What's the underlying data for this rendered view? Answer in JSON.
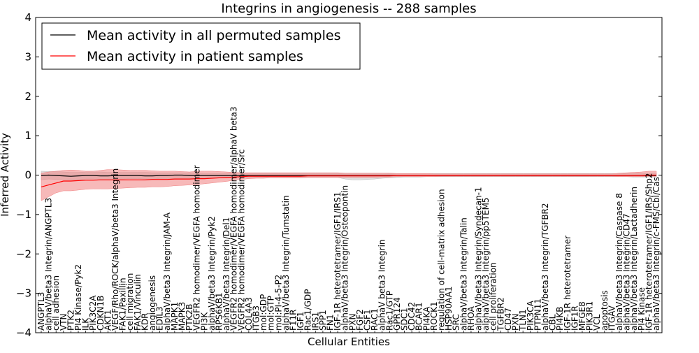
{
  "chart_data": {
    "type": "line",
    "title": "Integrins in angiogenesis -- 288 samples",
    "xlabel": "Cellular Entities",
    "ylabel": "Inferred Activity",
    "ylim": [
      -4,
      4
    ],
    "yticks": [
      -4,
      -3,
      -2,
      -1,
      0,
      1,
      2,
      3,
      4
    ],
    "grid": false,
    "legend_position": "top-left",
    "categories": [
      "ANGPTL3",
      "alphaV/beta3 Integrin/ANGPTL3",
      "cell adhesion",
      "VTN",
      "PTK2",
      "PI4 Kinase/Pyk2",
      "ILK",
      "PIK3C2A",
      "CDKN1B",
      "AKT1",
      "VEGF/Rho/ROCK/alphaV/beta3 Integrin",
      "FAK1/Paxillin",
      "cell migration",
      "FAK1/Vinculin",
      "KDR",
      "angiogenesis",
      "EDIL3",
      "alphaV/beta3 Integrin/JAM-A",
      "MAPK1",
      "MAPK3",
      "PTK2B",
      "VEGFR2 homodimer/VEGFA homodimer",
      "PI3K",
      "alphaV/beta3 Integrin/Pyk2",
      "RPS6KB1",
      "alphaV/beta3 Integrin/Del1",
      "VEGFR2 homodimer/VEGFA homodimer/alphaV beta3",
      "VEGFR2 homodimer/VEGFA homodimer/Src",
      "COL4A3",
      "ITGB3",
      "mol:GDP",
      "mol:GTP",
      "mol:PI-4-5-P2",
      "alphaV/beta3 Integrin/Tumstatin",
      "F11R",
      "IGF1",
      "Rac1/GDP",
      "IRS1",
      "SPP1",
      "FN1",
      "IGF-1R heterotetramer/IGF1/IRS1",
      "alphaV/beta3 Integrin/Osteopontin",
      "PXN",
      "FGF2",
      "CSF1",
      "RAC1",
      "alphaV beta3 Integrin",
      "Rac1/GTP",
      "GPR124",
      "SDC1",
      "CDC42",
      "BCAR1",
      "PI4KA",
      "ROCK1",
      "regulation of cell-matrix adhesion",
      "HSP90AA1",
      "SRC",
      "alphaV/beta3 Integrin/Talin",
      "RHOA",
      "alphaV/beta3 Integrin/Syndecan-1",
      "alphaV/beta3 Integrin/pp5TEM5",
      "cell proliferation",
      "TGFBR2",
      "CD47",
      "PXN",
      "TLN1",
      "PIK3CA",
      "PTPN11",
      "alphaV/beta3 Integrin/TGFBR2",
      "CBL",
      "PI4KB",
      "IGF-1R heterotetramer",
      "IGF1R",
      "MFGE8",
      "PIK3R1",
      "VCL",
      "apoptosis",
      "ITGAV",
      "alphaV/beta3 Integrin/Caspase 8",
      "alphaV/beta3 Integrin/CD47",
      "alphaV/beta3 Integrin/Lactadherin",
      "PI4 Kinase",
      "IGF-1R heterotetramer/IGF1/IRS/Shp2",
      "alphaV/beta3 Integrin/c-FMS/Cbl/Cas"
    ],
    "series": [
      {
        "name": "Mean activity in all permuted samples",
        "color": "#000000",
        "band_color": "#bbbbbb",
        "values": [
          -0.01,
          0.0,
          -0.01,
          -0.02,
          -0.03,
          -0.02,
          -0.01,
          -0.01,
          -0.02,
          -0.02,
          -0.01,
          -0.01,
          -0.01,
          -0.01,
          -0.02,
          -0.02,
          -0.01,
          -0.01,
          0.0,
          0.0,
          -0.01,
          -0.01,
          -0.01,
          -0.01,
          -0.01,
          -0.01,
          -0.01,
          -0.01,
          -0.01,
          -0.01,
          -0.01,
          -0.01,
          -0.01,
          -0.01,
          -0.01,
          -0.01,
          -0.01,
          -0.01,
          -0.01,
          -0.01,
          -0.01,
          -0.01,
          -0.01,
          -0.01,
          -0.01,
          -0.01,
          -0.01,
          -0.01,
          -0.01,
          -0.01,
          -0.01,
          -0.01,
          -0.01,
          -0.01,
          -0.01,
          -0.01,
          -0.01,
          -0.01,
          -0.01,
          -0.01,
          -0.01,
          -0.01,
          -0.01,
          -0.01,
          -0.01,
          -0.01,
          -0.01,
          -0.01,
          -0.01,
          -0.01,
          -0.01,
          -0.01,
          -0.01,
          -0.01,
          -0.01,
          -0.01,
          -0.01,
          -0.01,
          -0.01,
          -0.01,
          -0.01,
          -0.01,
          -0.01,
          -0.01
        ],
        "band_lower": [
          -0.12,
          -0.1,
          -0.11,
          -0.12,
          -0.13,
          -0.12,
          -0.1,
          -0.1,
          -0.11,
          -0.11,
          -0.1,
          -0.1,
          -0.09,
          -0.09,
          -0.1,
          -0.1,
          -0.09,
          -0.09,
          -0.08,
          -0.08,
          -0.08,
          -0.08,
          -0.07,
          -0.07,
          -0.07,
          -0.07,
          -0.06,
          -0.06,
          -0.06,
          -0.06,
          -0.06,
          -0.06,
          -0.06,
          -0.06,
          -0.06,
          -0.06,
          -0.06,
          -0.06,
          -0.06,
          -0.06,
          -0.06,
          -0.1,
          -0.12,
          -0.12,
          -0.11,
          -0.1,
          -0.08,
          -0.07,
          -0.06,
          -0.05,
          -0.05,
          -0.05,
          -0.04,
          -0.04,
          -0.04,
          -0.04,
          -0.04,
          -0.04,
          -0.04,
          -0.04,
          -0.04,
          -0.04,
          -0.04,
          -0.04,
          -0.04,
          -0.04,
          -0.04,
          -0.04,
          -0.04,
          -0.04,
          -0.04,
          -0.04,
          -0.04,
          -0.04,
          -0.04,
          -0.04,
          -0.04,
          -0.04,
          -0.04,
          -0.04,
          -0.05,
          -0.05,
          -0.05,
          -0.05
        ],
        "band_upper": [
          0.1,
          0.09,
          0.09,
          0.08,
          0.07,
          0.07,
          0.08,
          0.08,
          0.08,
          0.07,
          0.07,
          0.07,
          0.07,
          0.07,
          0.07,
          0.06,
          0.06,
          0.06,
          0.06,
          0.06,
          0.06,
          0.06,
          0.05,
          0.05,
          0.05,
          0.05,
          0.05,
          0.05,
          0.05,
          0.05,
          0.05,
          0.05,
          0.05,
          0.05,
          0.05,
          0.05,
          0.05,
          0.05,
          0.05,
          0.05,
          0.05,
          0.05,
          0.05,
          0.05,
          0.05,
          0.05,
          0.05,
          0.04,
          0.04,
          0.04,
          0.04,
          0.04,
          0.04,
          0.04,
          0.04,
          0.04,
          0.04,
          0.04,
          0.04,
          0.04,
          0.04,
          0.04,
          0.04,
          0.04,
          0.04,
          0.04,
          0.04,
          0.04,
          0.04,
          0.04,
          0.04,
          0.04,
          0.04,
          0.04,
          0.04,
          0.04,
          0.04,
          0.04,
          0.04,
          0.04,
          0.05,
          0.05,
          0.05,
          0.05
        ]
      },
      {
        "name": "Mean activity in patient samples",
        "color": "#ff0000",
        "band_color": "#f08080",
        "values": [
          -0.3,
          -0.25,
          -0.2,
          -0.15,
          -0.15,
          -0.14,
          -0.13,
          -0.13,
          -0.12,
          -0.12,
          -0.12,
          -0.12,
          -0.12,
          -0.12,
          -0.12,
          -0.11,
          -0.11,
          -0.11,
          -0.1,
          -0.1,
          -0.1,
          -0.09,
          -0.09,
          -0.08,
          -0.07,
          -0.06,
          -0.05,
          -0.04,
          -0.03,
          -0.03,
          -0.03,
          -0.03,
          -0.03,
          -0.03,
          -0.03,
          -0.03,
          -0.02,
          -0.02,
          -0.02,
          -0.02,
          -0.02,
          -0.02,
          -0.02,
          -0.02,
          -0.02,
          -0.02,
          -0.02,
          -0.02,
          -0.01,
          -0.01,
          -0.01,
          -0.01,
          -0.01,
          -0.01,
          -0.01,
          -0.01,
          -0.01,
          -0.01,
          -0.01,
          -0.01,
          -0.01,
          -0.01,
          -0.01,
          -0.01,
          -0.01,
          -0.01,
          -0.01,
          -0.01,
          -0.01,
          -0.01,
          -0.01,
          -0.01,
          -0.01,
          -0.01,
          -0.01,
          -0.01,
          -0.01,
          -0.01,
          -0.01,
          -0.01,
          -0.01,
          -0.01,
          0.0,
          0.0
        ],
        "band_lower": [
          -0.65,
          -0.55,
          -0.45,
          -0.4,
          -0.4,
          -0.38,
          -0.36,
          -0.35,
          -0.35,
          -0.35,
          -0.34,
          -0.33,
          -0.32,
          -0.31,
          -0.31,
          -0.3,
          -0.3,
          -0.29,
          -0.27,
          -0.26,
          -0.25,
          -0.24,
          -0.22,
          -0.2,
          -0.18,
          -0.16,
          -0.13,
          -0.11,
          -0.09,
          -0.08,
          -0.08,
          -0.07,
          -0.07,
          -0.07,
          -0.07,
          -0.07,
          -0.06,
          -0.06,
          -0.06,
          -0.06,
          -0.06,
          -0.06,
          -0.06,
          -0.06,
          -0.06,
          -0.06,
          -0.05,
          -0.05,
          -0.04,
          -0.04,
          -0.04,
          -0.04,
          -0.04,
          -0.04,
          -0.03,
          -0.03,
          -0.03,
          -0.03,
          -0.03,
          -0.03,
          -0.03,
          -0.03,
          -0.03,
          -0.03,
          -0.03,
          -0.03,
          -0.03,
          -0.03,
          -0.03,
          -0.03,
          -0.03,
          -0.03,
          -0.03,
          -0.03,
          -0.03,
          -0.03,
          -0.03,
          -0.03,
          -0.04,
          -0.04,
          -0.04,
          -0.04,
          -0.03,
          -0.03
        ],
        "band_upper": [
          0.05,
          0.08,
          0.1,
          0.12,
          0.13,
          0.12,
          0.1,
          0.1,
          0.12,
          0.14,
          0.14,
          0.13,
          0.12,
          0.12,
          0.12,
          0.11,
          0.1,
          0.1,
          0.1,
          0.09,
          0.08,
          0.1,
          0.1,
          0.1,
          0.09,
          0.08,
          0.07,
          0.06,
          0.06,
          0.06,
          0.06,
          0.06,
          0.06,
          0.06,
          0.06,
          0.06,
          0.06,
          0.06,
          0.06,
          0.06,
          0.06,
          0.05,
          0.05,
          0.05,
          0.05,
          0.05,
          0.05,
          0.05,
          0.04,
          0.04,
          0.04,
          0.04,
          0.04,
          0.03,
          0.03,
          0.03,
          0.03,
          0.03,
          0.03,
          0.03,
          0.03,
          0.03,
          0.03,
          0.03,
          0.03,
          0.03,
          0.03,
          0.03,
          0.03,
          0.03,
          0.03,
          0.03,
          0.03,
          0.03,
          0.03,
          0.03,
          0.03,
          0.03,
          0.05,
          0.06,
          0.07,
          0.08,
          0.1,
          0.1
        ]
      }
    ]
  }
}
